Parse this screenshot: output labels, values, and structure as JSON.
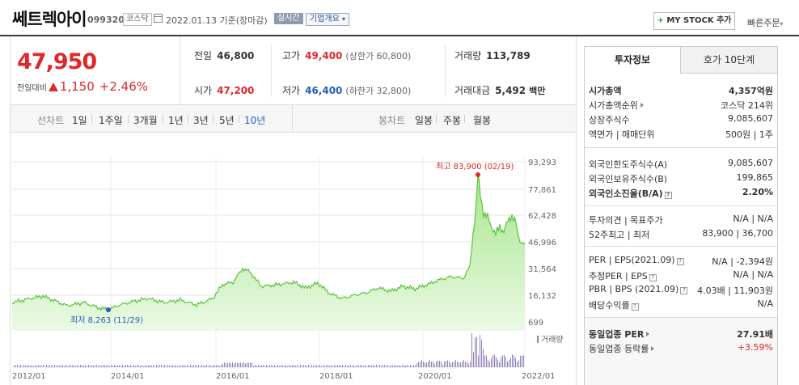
{
  "header": {
    "name": "쎄트렉아이",
    "code": "099320",
    "market": "코스닥",
    "date": "2022.01.13  기준(장마감)",
    "realtime": "실시간",
    "company_info": "기업개요",
    "mystock": "MY STOCK 추가",
    "quick_order": "빠른주문"
  },
  "price": {
    "current": "47,950",
    "change_label": "전일대비",
    "change_amount": "1,150",
    "change_percent": "+2.46%"
  },
  "stats": [
    {
      "label": "전일",
      "value": "46,800",
      "sub": ""
    },
    {
      "label": "고가",
      "value": "49,400",
      "sub": "(상한가 60,800)"
    },
    {
      "label": "거래량",
      "value": "113,789",
      "sub": ""
    },
    {
      "label": "시가",
      "value": "47,200",
      "sub": ""
    },
    {
      "label": "저가",
      "value": "46,400",
      "sub": "(하한가 32,800)"
    },
    {
      "label": "거래대금",
      "value": "5,492",
      "sub": "백만"
    }
  ],
  "tabs": {
    "line_label": "선차트",
    "line_items": [
      "1일",
      "1주일",
      "3개월",
      "1년",
      "3년",
      "5년",
      "10년"
    ],
    "active": "10년",
    "candle_label": "봉차트",
    "candle_items": [
      "일봉",
      "주봉",
      "월봉"
    ]
  },
  "chart": {
    "y_ticks": [
      "93,293",
      "77,861",
      "62,428",
      "46,996",
      "31,564",
      "16,132",
      "699"
    ],
    "x_ticks": [
      "2012/01",
      "2014/01",
      "2016/01",
      "2018/01",
      "2020/01",
      "2022/01"
    ],
    "high_label": "최고 83,900 (02/19)",
    "low_label": "최저 8,263 (11/29)",
    "volume_label": "거래량",
    "high_color": "#e0282a",
    "low_color": "#1f5fbf",
    "line_color": "#5cc341"
  },
  "info": {
    "tab1": "투자정보",
    "tab2": "호가 10단계",
    "rows": [
      {
        "k": "시가총액",
        "v": "4,357억원",
        "bold": true
      },
      {
        "k": "시가총액순위",
        "v": "코스닥 214위",
        "arrow": true
      },
      {
        "k": "상장주식수",
        "v": "9,085,607"
      },
      {
        "k": "액면가 | 매매단위",
        "v": "500원 | 1주"
      },
      {
        "k": "외국인한도주식수(A)",
        "v": "9,085,607"
      },
      {
        "k": "외국인보유주식수(B)",
        "v": "199,865"
      },
      {
        "k": "외국인소진율(B/A)",
        "v": "2.20%",
        "bold": true,
        "q": true
      },
      {
        "k": "투자의견 | 목표주가",
        "v": "N/A | N/A"
      },
      {
        "k": "52주최고 | 최저",
        "v": "83,900 | 36,700"
      },
      {
        "k": "PER | EPS(2021.09)",
        "v": "N/A | -2,394원",
        "q": true
      },
      {
        "k": "추정PER | EPS",
        "v": "N/A | N/A",
        "q": true
      },
      {
        "k": "PBR | BPS (2021.09)",
        "v": "4.03배 | 11,903원",
        "q": true
      },
      {
        "k": "배당수익률",
        "v": "N/A",
        "q": true
      },
      {
        "k": "동일업종 PER",
        "v": "27.91배",
        "bold": true,
        "arrow": true
      },
      {
        "k": "동일업종 등락률",
        "v": "+3.59%",
        "red": true,
        "arrow": true
      }
    ]
  }
}
